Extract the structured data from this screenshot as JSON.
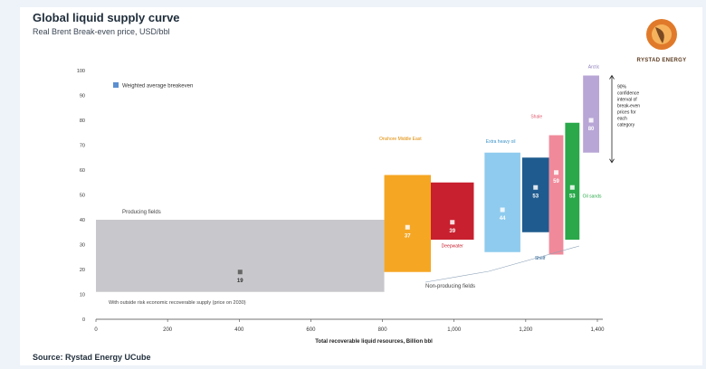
{
  "header": {
    "title": "Global liquid supply curve",
    "subtitle": "Real Brent Break-even price, USD/bbl"
  },
  "footer": {
    "source": "Source: Rystad Energy UCube"
  },
  "logo": {
    "text": "RYSTAD ENERGY"
  },
  "chart_data": {
    "type": "bar",
    "title": "Global liquid supply curve",
    "subtitle": "Real Brent Break-even price, USD/bbl",
    "xlabel": "Total recoverable liquid resources, Billion bbl",
    "ylabel": "",
    "xlim": [
      0,
      1400
    ],
    "ylim": [
      0,
      100
    ],
    "x_ticks": [
      0,
      200,
      400,
      600,
      800,
      1000,
      1200,
      1400
    ],
    "x_tick_labels": [
      "0",
      "200",
      "400",
      "600",
      "800",
      "1,000",
      "1,200",
      "1,400"
    ],
    "y_ticks": [
      0,
      10,
      20,
      30,
      40,
      50,
      60,
      70,
      80,
      90,
      100
    ],
    "grid": false,
    "legend": {
      "placement": "top-left",
      "entries": [
        "Weighted average breakeven"
      ]
    },
    "colors": {
      "producing": "#c8c8cc",
      "orange": "#f5a623",
      "red": "#c8202f",
      "lightblue": "#8ecbee",
      "darkblue": "#1f5b8e",
      "pink": "#f08a9a",
      "green": "#2aa84a",
      "purple": "#b8a6d6",
      "marker": "#5b8fd0"
    },
    "bars": [
      {
        "label": "Producing fields",
        "color": "producing",
        "x0": 0,
        "x1": 805,
        "low": 11,
        "high": 40,
        "avg": 19,
        "avg_label": "19"
      },
      {
        "label": "Onshore Middle East",
        "color": "orange",
        "x0": 805,
        "x1": 935,
        "low": 19,
        "high": 58,
        "avg": 37,
        "avg_label": "37"
      },
      {
        "label": "Deepwater",
        "color": "red",
        "x0": 935,
        "x1": 1055,
        "low": 32,
        "high": 55,
        "avg": 39,
        "avg_label": "39"
      },
      {
        "label": "Extra heavy oil",
        "color": "lightblue",
        "x0": 1085,
        "x1": 1185,
        "low": 27,
        "high": 67,
        "avg": 44,
        "avg_label": "44"
      },
      {
        "label": "Shelf",
        "color": "darkblue",
        "x0": 1190,
        "x1": 1265,
        "low": 35,
        "high": 65,
        "avg": 53,
        "avg_label": "53"
      },
      {
        "label": "Shale",
        "color": "pink",
        "x0": 1265,
        "x1": 1305,
        "low": 26,
        "high": 74,
        "avg": 59,
        "avg_label": "59"
      },
      {
        "label": "Oil sands",
        "color": "green",
        "x0": 1310,
        "x1": 1350,
        "low": 32,
        "high": 79,
        "avg": 53,
        "avg_label": "53"
      },
      {
        "label": "Arctic",
        "color": "purple",
        "x0": 1360,
        "x1": 1405,
        "low": 67,
        "high": 98,
        "avg": 80,
        "avg_label": "80"
      }
    ],
    "annotations": {
      "bottom_note": "With outside risk economic recoverable supply (price on 2030)",
      "producing_fields": "Producing fields",
      "non_producing": "Non-producing fields",
      "confidence": "90% confidence interval of break-even prices for each category"
    }
  }
}
